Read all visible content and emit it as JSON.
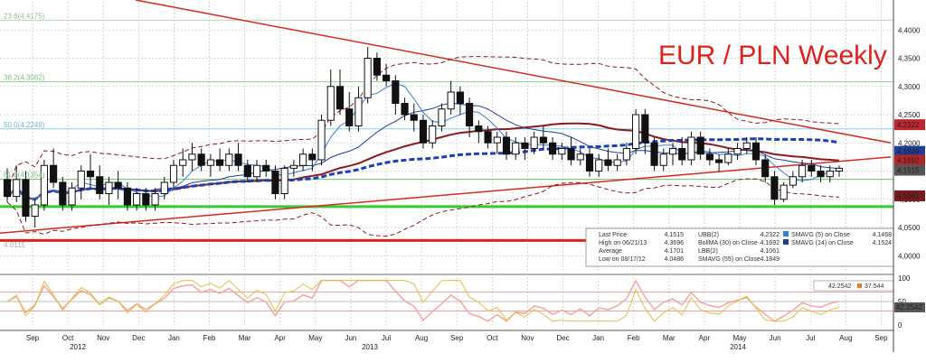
{
  "chart_data": {
    "type": "candlestick",
    "title": "EUR / PLN Weekly",
    "title_color": "#e0201b",
    "price_axis": {
      "ylim": [
        3.97,
        4.45
      ],
      "ticks": [
        "4,4000",
        "4,3500",
        "4,3000",
        "4,2500",
        "4,2000",
        "4,1500",
        "4,1000",
        "4,0500",
        "4,0000"
      ]
    },
    "price_labels": [
      {
        "text": "4.2322",
        "color": "#c0272d"
      },
      {
        "text": "4.1849",
        "color": "#1f3d99"
      },
      {
        "text": "4.1692",
        "color": "#b2262a"
      },
      {
        "text": "4.1515",
        "color": "#555555"
      },
      {
        "text": "4.1061",
        "color": "#7a1a1a"
      }
    ],
    "fib_labels": [
      {
        "text": "23.6(4.4175)",
        "value": 4.4175,
        "color": "#8fbf8f"
      },
      {
        "text": "38.2(4.3082)",
        "value": 4.3082,
        "color": "#7fc07f"
      },
      {
        "text": "50.0(4.2248)",
        "value": 4.2248,
        "color": "#6fb5c8"
      },
      {
        "text": "61.8(4.1354)",
        "value": 4.1354,
        "color": "#74c274"
      },
      {
        "text": "4.0115",
        "value": 4.0115,
        "color": "#aaaaaa"
      }
    ],
    "osc_axis": {
      "ylim": [
        0,
        100
      ],
      "ticks": [
        "100",
        "50",
        "0"
      ]
    },
    "osc_labels": [
      {
        "text": "42.2542",
        "color": "#222222"
      },
      {
        "text": "37.544",
        "color": "#e87a2c"
      }
    ],
    "osc_value_label": "42.2542",
    "x_months": [
      "Sep",
      "Oct",
      "Nov",
      "Dec",
      "Jan",
      "Feb",
      "Mar",
      "Apr",
      "May",
      "Jun",
      "Jul",
      "Aug",
      "Sep",
      "Oct",
      "Nov",
      "Dec",
      "Jan",
      "Feb",
      "Mar",
      "Apr",
      "May",
      "Jun",
      "Jul",
      "Aug",
      "Sep"
    ],
    "x_years": [
      "2012",
      "2013",
      "2014"
    ],
    "legend": {
      "col1": [
        {
          "name": "Last Price",
          "value": "4.1515"
        },
        {
          "name": "High on 06/21/13",
          "value": "4.3696"
        },
        {
          "name": "Average",
          "value": "4.1701"
        },
        {
          "name": "Low on 08/17/12",
          "value": "4.0486"
        }
      ],
      "col2": [
        {
          "name": "UBB(2)",
          "value": "4.2322"
        },
        {
          "name": "BollMA (30) on Close",
          "value": "4.1692"
        },
        {
          "name": "LBB(2)",
          "value": "4.1061"
        },
        {
          "name": "SMAVG (55) on Close",
          "value": "4.1849"
        }
      ],
      "col3": [
        {
          "name": "SMAVG (5) on Close",
          "value": "4.1468"
        },
        {
          "name": "SMAVG (14) on Close",
          "value": "4.1524"
        }
      ]
    },
    "series": [
      {
        "name": "SMAVG (5) on Close",
        "color": "#3a7fd6"
      },
      {
        "name": "SMAVG (14) on Close",
        "color": "#1f3d99"
      },
      {
        "name": "SMAVG (55) on Close",
        "color": "#1f3db8"
      },
      {
        "name": "BollMA (30) on Close",
        "color": "#8b1a1f"
      }
    ],
    "candles": [
      [
        4.135,
        4.155,
        4.095,
        4.105
      ],
      [
        4.105,
        4.16,
        4.095,
        4.135
      ],
      [
        4.135,
        4.15,
        4.06,
        4.07
      ],
      [
        4.07,
        4.1,
        4.05,
        4.09
      ],
      [
        4.09,
        4.17,
        4.08,
        4.16
      ],
      [
        4.16,
        4.19,
        4.12,
        4.13
      ],
      [
        4.13,
        4.14,
        4.08,
        4.09
      ],
      [
        4.09,
        4.13,
        4.08,
        4.12
      ],
      [
        4.12,
        4.16,
        4.1,
        4.15
      ],
      [
        4.15,
        4.18,
        4.12,
        4.14
      ],
      [
        4.14,
        4.16,
        4.1,
        4.11
      ],
      [
        4.11,
        4.14,
        4.09,
        4.13
      ],
      [
        4.13,
        4.15,
        4.1,
        4.12
      ],
      [
        4.12,
        4.13,
        4.08,
        4.09
      ],
      [
        4.09,
        4.12,
        4.08,
        4.11
      ],
      [
        4.11,
        4.12,
        4.08,
        4.09
      ],
      [
        4.09,
        4.12,
        4.08,
        4.11
      ],
      [
        4.11,
        4.14,
        4.1,
        4.13
      ],
      [
        4.13,
        4.17,
        4.12,
        4.16
      ],
      [
        4.16,
        4.19,
        4.14,
        4.17
      ],
      [
        4.17,
        4.2,
        4.15,
        4.18
      ],
      [
        4.18,
        4.19,
        4.15,
        4.16
      ],
      [
        4.16,
        4.18,
        4.14,
        4.17
      ],
      [
        4.17,
        4.19,
        4.15,
        4.16
      ],
      [
        4.16,
        4.19,
        4.15,
        4.18
      ],
      [
        4.18,
        4.2,
        4.15,
        4.16
      ],
      [
        4.16,
        4.17,
        4.13,
        4.14
      ],
      [
        4.14,
        4.17,
        4.13,
        4.16
      ],
      [
        4.16,
        4.17,
        4.14,
        4.15
      ],
      [
        4.15,
        4.16,
        4.1,
        4.11
      ],
      [
        4.11,
        4.16,
        4.1,
        4.155
      ],
      [
        4.155,
        4.17,
        4.14,
        4.16
      ],
      [
        4.16,
        4.19,
        4.15,
        4.18
      ],
      [
        4.18,
        4.19,
        4.15,
        4.17
      ],
      [
        4.17,
        4.25,
        4.16,
        4.24
      ],
      [
        4.24,
        4.33,
        4.23,
        4.3
      ],
      [
        4.3,
        4.33,
        4.25,
        4.26
      ],
      [
        4.26,
        4.29,
        4.22,
        4.23
      ],
      [
        4.23,
        4.3,
        4.22,
        4.28
      ],
      [
        4.28,
        4.37,
        4.27,
        4.35
      ],
      [
        4.35,
        4.36,
        4.31,
        4.32
      ],
      [
        4.32,
        4.34,
        4.3,
        4.31
      ],
      [
        4.31,
        4.32,
        4.25,
        4.27
      ],
      [
        4.27,
        4.28,
        4.24,
        4.25
      ],
      [
        4.25,
        4.27,
        4.22,
        4.24
      ],
      [
        4.24,
        4.25,
        4.19,
        4.2
      ],
      [
        4.2,
        4.24,
        4.19,
        4.23
      ],
      [
        4.23,
        4.27,
        4.22,
        4.26
      ],
      [
        4.26,
        4.31,
        4.25,
        4.29
      ],
      [
        4.29,
        4.3,
        4.25,
        4.27
      ],
      [
        4.27,
        4.28,
        4.21,
        4.23
      ],
      [
        4.23,
        4.24,
        4.2,
        4.22
      ],
      [
        4.22,
        4.23,
        4.19,
        4.2
      ],
      [
        4.2,
        4.22,
        4.18,
        4.21
      ],
      [
        4.21,
        4.22,
        4.17,
        4.18
      ],
      [
        4.18,
        4.21,
        4.17,
        4.2
      ],
      [
        4.2,
        4.21,
        4.17,
        4.19
      ],
      [
        4.19,
        4.22,
        4.18,
        4.21
      ],
      [
        4.21,
        4.23,
        4.19,
        4.2
      ],
      [
        4.2,
        4.21,
        4.17,
        4.18
      ],
      [
        4.18,
        4.2,
        4.17,
        4.19
      ],
      [
        4.19,
        4.21,
        4.16,
        4.17
      ],
      [
        4.17,
        4.19,
        4.16,
        4.18
      ],
      [
        4.18,
        4.19,
        4.14,
        4.15
      ],
      [
        4.15,
        4.18,
        4.14,
        4.17
      ],
      [
        4.17,
        4.19,
        4.15,
        4.16
      ],
      [
        4.16,
        4.18,
        4.15,
        4.17
      ],
      [
        4.17,
        4.2,
        4.16,
        4.19
      ],
      [
        4.19,
        4.26,
        4.18,
        4.25
      ],
      [
        4.25,
        4.26,
        4.18,
        4.2
      ],
      [
        4.2,
        4.21,
        4.15,
        4.16
      ],
      [
        4.16,
        4.19,
        4.15,
        4.18
      ],
      [
        4.18,
        4.2,
        4.16,
        4.19
      ],
      [
        4.19,
        4.21,
        4.16,
        4.17
      ],
      [
        4.17,
        4.22,
        4.16,
        4.21
      ],
      [
        4.21,
        4.22,
        4.17,
        4.18
      ],
      [
        4.18,
        4.19,
        4.16,
        4.17
      ],
      [
        4.17,
        4.18,
        4.15,
        4.165
      ],
      [
        4.165,
        4.19,
        4.16,
        4.18
      ],
      [
        4.18,
        4.2,
        4.17,
        4.19
      ],
      [
        4.19,
        4.21,
        4.18,
        4.2
      ],
      [
        4.2,
        4.21,
        4.16,
        4.17
      ],
      [
        4.17,
        4.18,
        4.13,
        4.14
      ],
      [
        4.14,
        4.15,
        4.09,
        4.1
      ],
      [
        4.1,
        4.13,
        4.095,
        4.125
      ],
      [
        4.125,
        4.15,
        4.12,
        4.14
      ],
      [
        4.14,
        4.17,
        4.13,
        4.16
      ],
      [
        4.16,
        4.17,
        4.14,
        4.15
      ],
      [
        4.15,
        4.16,
        4.13,
        4.14
      ],
      [
        4.14,
        4.16,
        4.13,
        4.15
      ],
      [
        4.15,
        4.16,
        4.14,
        4.155
      ]
    ]
  }
}
